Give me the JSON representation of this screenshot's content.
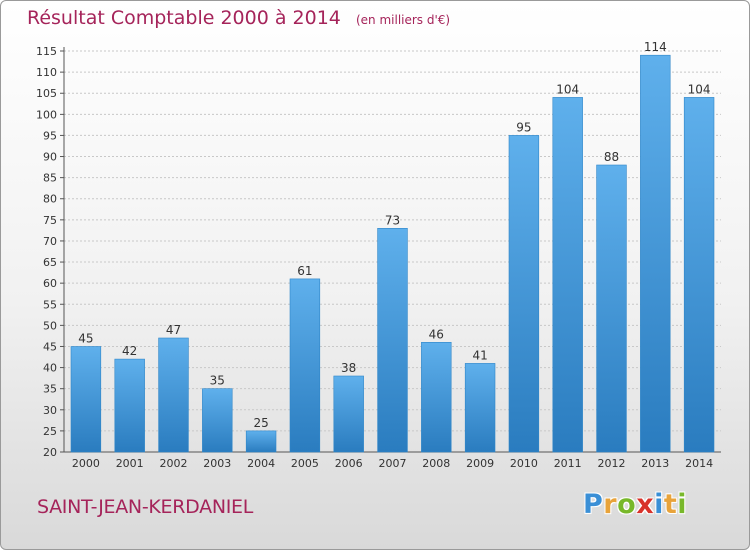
{
  "title": "Résultat Comptable 2000 à 2014",
  "subtitle": "(en milliers d'€)",
  "town": "SAINT-JEAN-KERDANIEL",
  "logo": {
    "text": "Proxiti",
    "letters": [
      "P",
      "r",
      "o",
      "x",
      "i",
      "t",
      "i"
    ],
    "colors": [
      "#3a8fd6",
      "#e8a33a",
      "#78b82a",
      "#d8322a",
      "#3a8fd6",
      "#e8a33a",
      "#78b82a"
    ]
  },
  "colors": {
    "accent": "#a5245a",
    "bar_top": "#5fb0ec",
    "bar_bottom": "#2a7cbf",
    "grid": "#c8c8c8"
  },
  "chart_data": {
    "type": "bar",
    "categories": [
      "2000",
      "2001",
      "2002",
      "2003",
      "2004",
      "2005",
      "2006",
      "2007",
      "2008",
      "2009",
      "2010",
      "2011",
      "2012",
      "2013",
      "2014"
    ],
    "values": [
      45,
      42,
      47,
      35,
      25,
      61,
      38,
      73,
      46,
      41,
      95,
      104,
      88,
      114,
      104
    ],
    "value_labels": [
      "45",
      "42",
      "47",
      "35",
      "25",
      "61",
      "38",
      "73",
      "46",
      "41",
      "95",
      "104",
      "88",
      "114",
      "104"
    ],
    "ylim": [
      20,
      115
    ],
    "yticks": [
      20,
      25,
      30,
      35,
      40,
      45,
      50,
      55,
      60,
      65,
      70,
      75,
      80,
      85,
      90,
      95,
      100,
      105,
      110,
      115
    ],
    "ytick_labels": [
      "20",
      "25",
      "30",
      "35",
      "40",
      "45",
      "50",
      "55",
      "60",
      "65",
      "70",
      "75",
      "80",
      "85",
      "90",
      "95",
      "100",
      "105",
      "110",
      "115"
    ],
    "grid": true,
    "xlabel": "",
    "ylabel": ""
  }
}
